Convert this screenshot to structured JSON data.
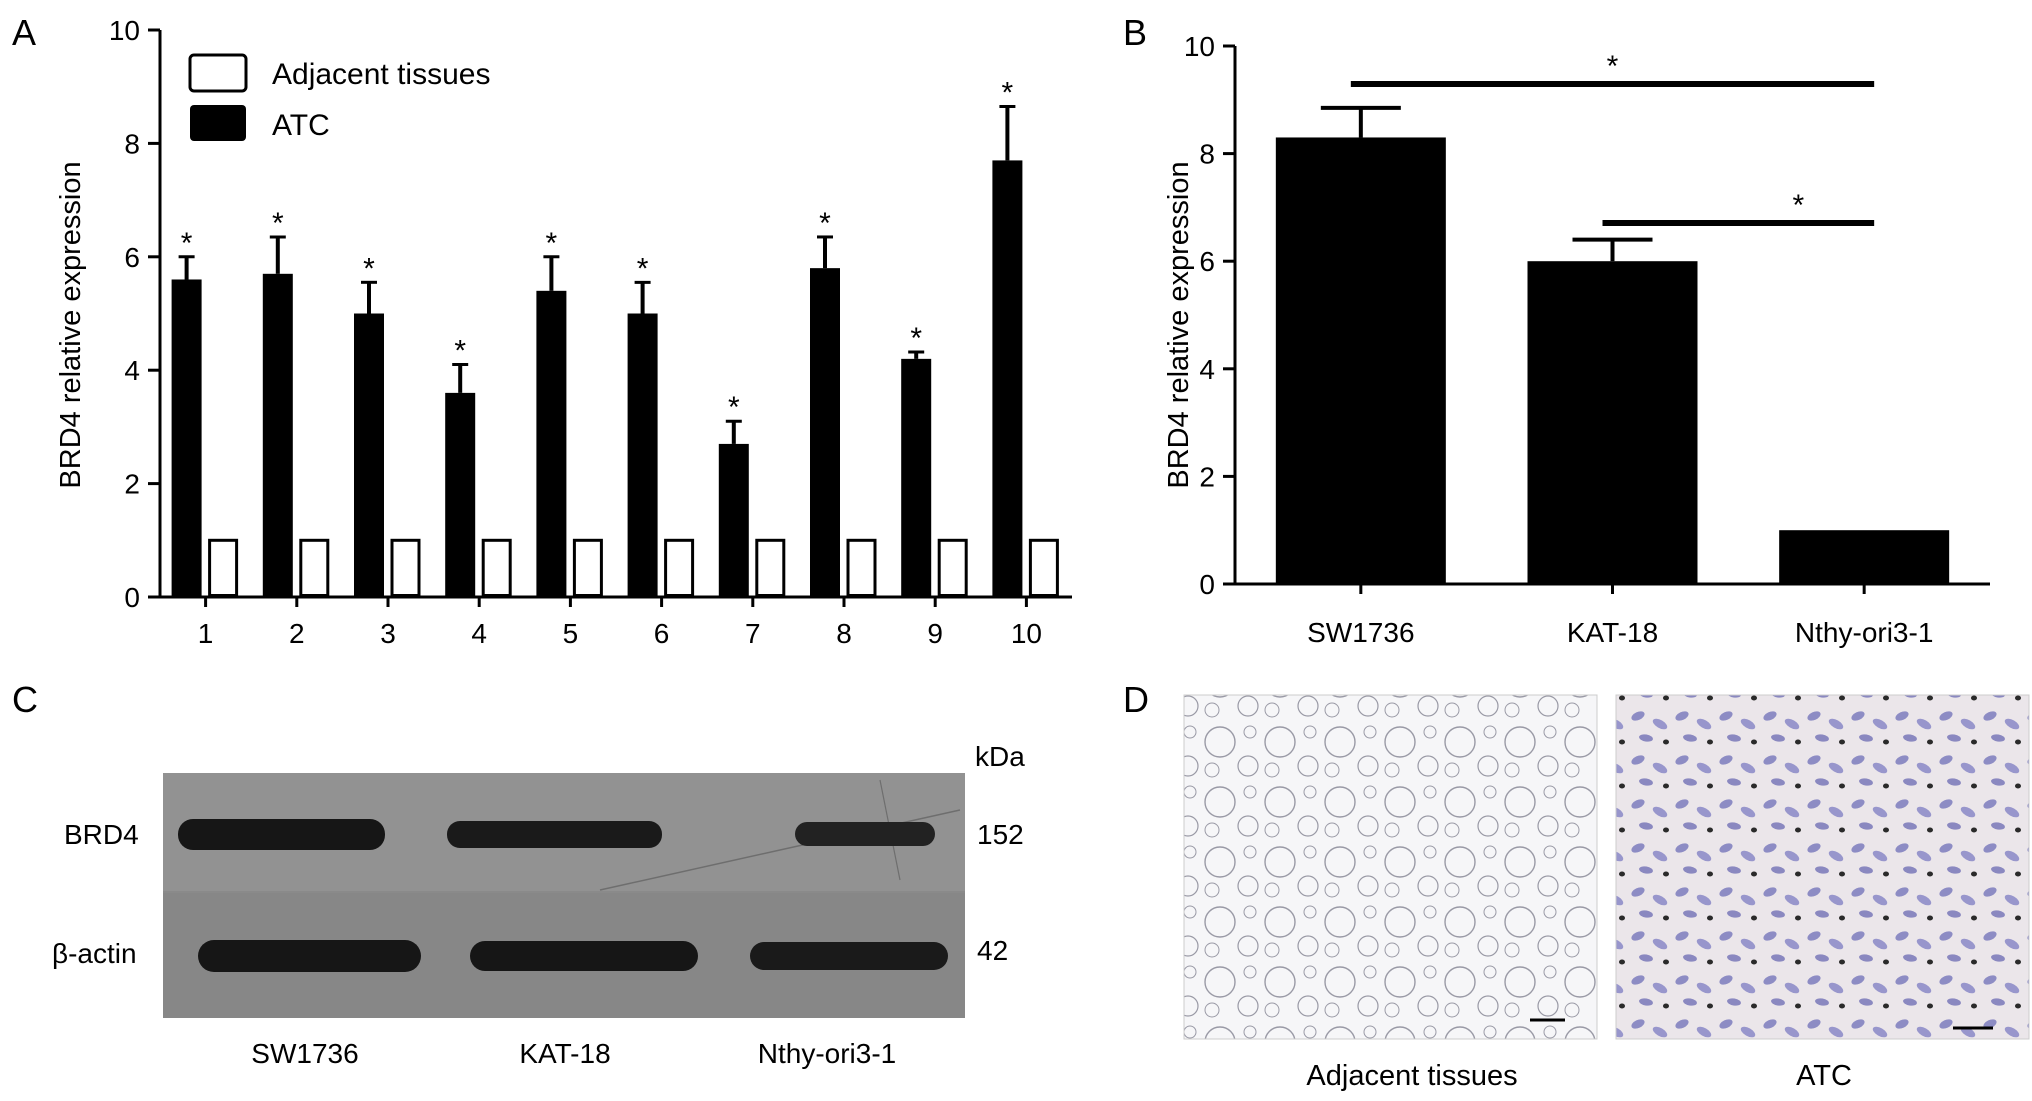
{
  "panels": {
    "A": {
      "letter": "A"
    },
    "B": {
      "letter": "B"
    },
    "C": {
      "letter": "C",
      "unit_label": "kDa",
      "row_labels": [
        "BRD4",
        "β-actin"
      ],
      "marker_sizes": [
        "152",
        "42"
      ],
      "lane_labels": [
        "SW1736",
        "KAT-18",
        "Nthy-ori3-1"
      ]
    },
    "D": {
      "letter": "D",
      "image_labels": [
        "Adjacent tissues",
        "ATC"
      ]
    }
  },
  "colors": {
    "bar_fill": "#000000",
    "background": "#ffffff",
    "blot_bg": "#8a8a8a",
    "band": "#161616"
  },
  "chart_data": [
    {
      "panel": "A",
      "type": "bar",
      "categories": [
        "1",
        "2",
        "3",
        "4",
        "5",
        "6",
        "7",
        "8",
        "9",
        "10"
      ],
      "series": [
        {
          "name": "Adjacent tissues",
          "values": [
            1,
            1,
            1,
            1,
            1,
            1,
            1,
            1,
            1,
            1
          ],
          "errors": [
            0,
            0,
            0,
            0,
            0,
            0,
            0,
            0,
            0,
            0
          ],
          "style": "open"
        },
        {
          "name": "ATC",
          "values": [
            5.6,
            5.7,
            5.0,
            3.6,
            5.4,
            5.0,
            2.7,
            5.8,
            4.2,
            7.7
          ],
          "errors": [
            0.4,
            0.65,
            0.55,
            0.5,
            0.6,
            0.55,
            0.4,
            0.55,
            0.12,
            0.95
          ],
          "style": "filled"
        }
      ],
      "significance": [
        "*",
        "*",
        "*",
        "*",
        "*",
        "*",
        "*",
        "*",
        "*",
        "*"
      ],
      "xlabel": "",
      "ylabel": "BRD4 relative expression",
      "ylim": [
        0,
        10
      ],
      "yticks": [
        0,
        2,
        4,
        6,
        8,
        10
      ],
      "legend": "top-left",
      "grid": false
    },
    {
      "panel": "B",
      "type": "bar",
      "categories": [
        "SW1736",
        "KAT-18",
        "Nthy-ori3-1"
      ],
      "values": [
        8.3,
        6.0,
        1.0
      ],
      "errors": [
        0.55,
        0.4,
        0
      ],
      "comparisons": [
        {
          "from": "SW1736",
          "to": "Nthy-ori3-1",
          "label": "*"
        },
        {
          "from": "KAT-18",
          "to": "Nthy-ori3-1",
          "label": "*"
        }
      ],
      "xlabel": "",
      "ylabel": "BRD4 relative expression",
      "ylim": [
        0,
        10
      ],
      "yticks": [
        0,
        2,
        4,
        6,
        8,
        10
      ],
      "grid": false
    }
  ]
}
